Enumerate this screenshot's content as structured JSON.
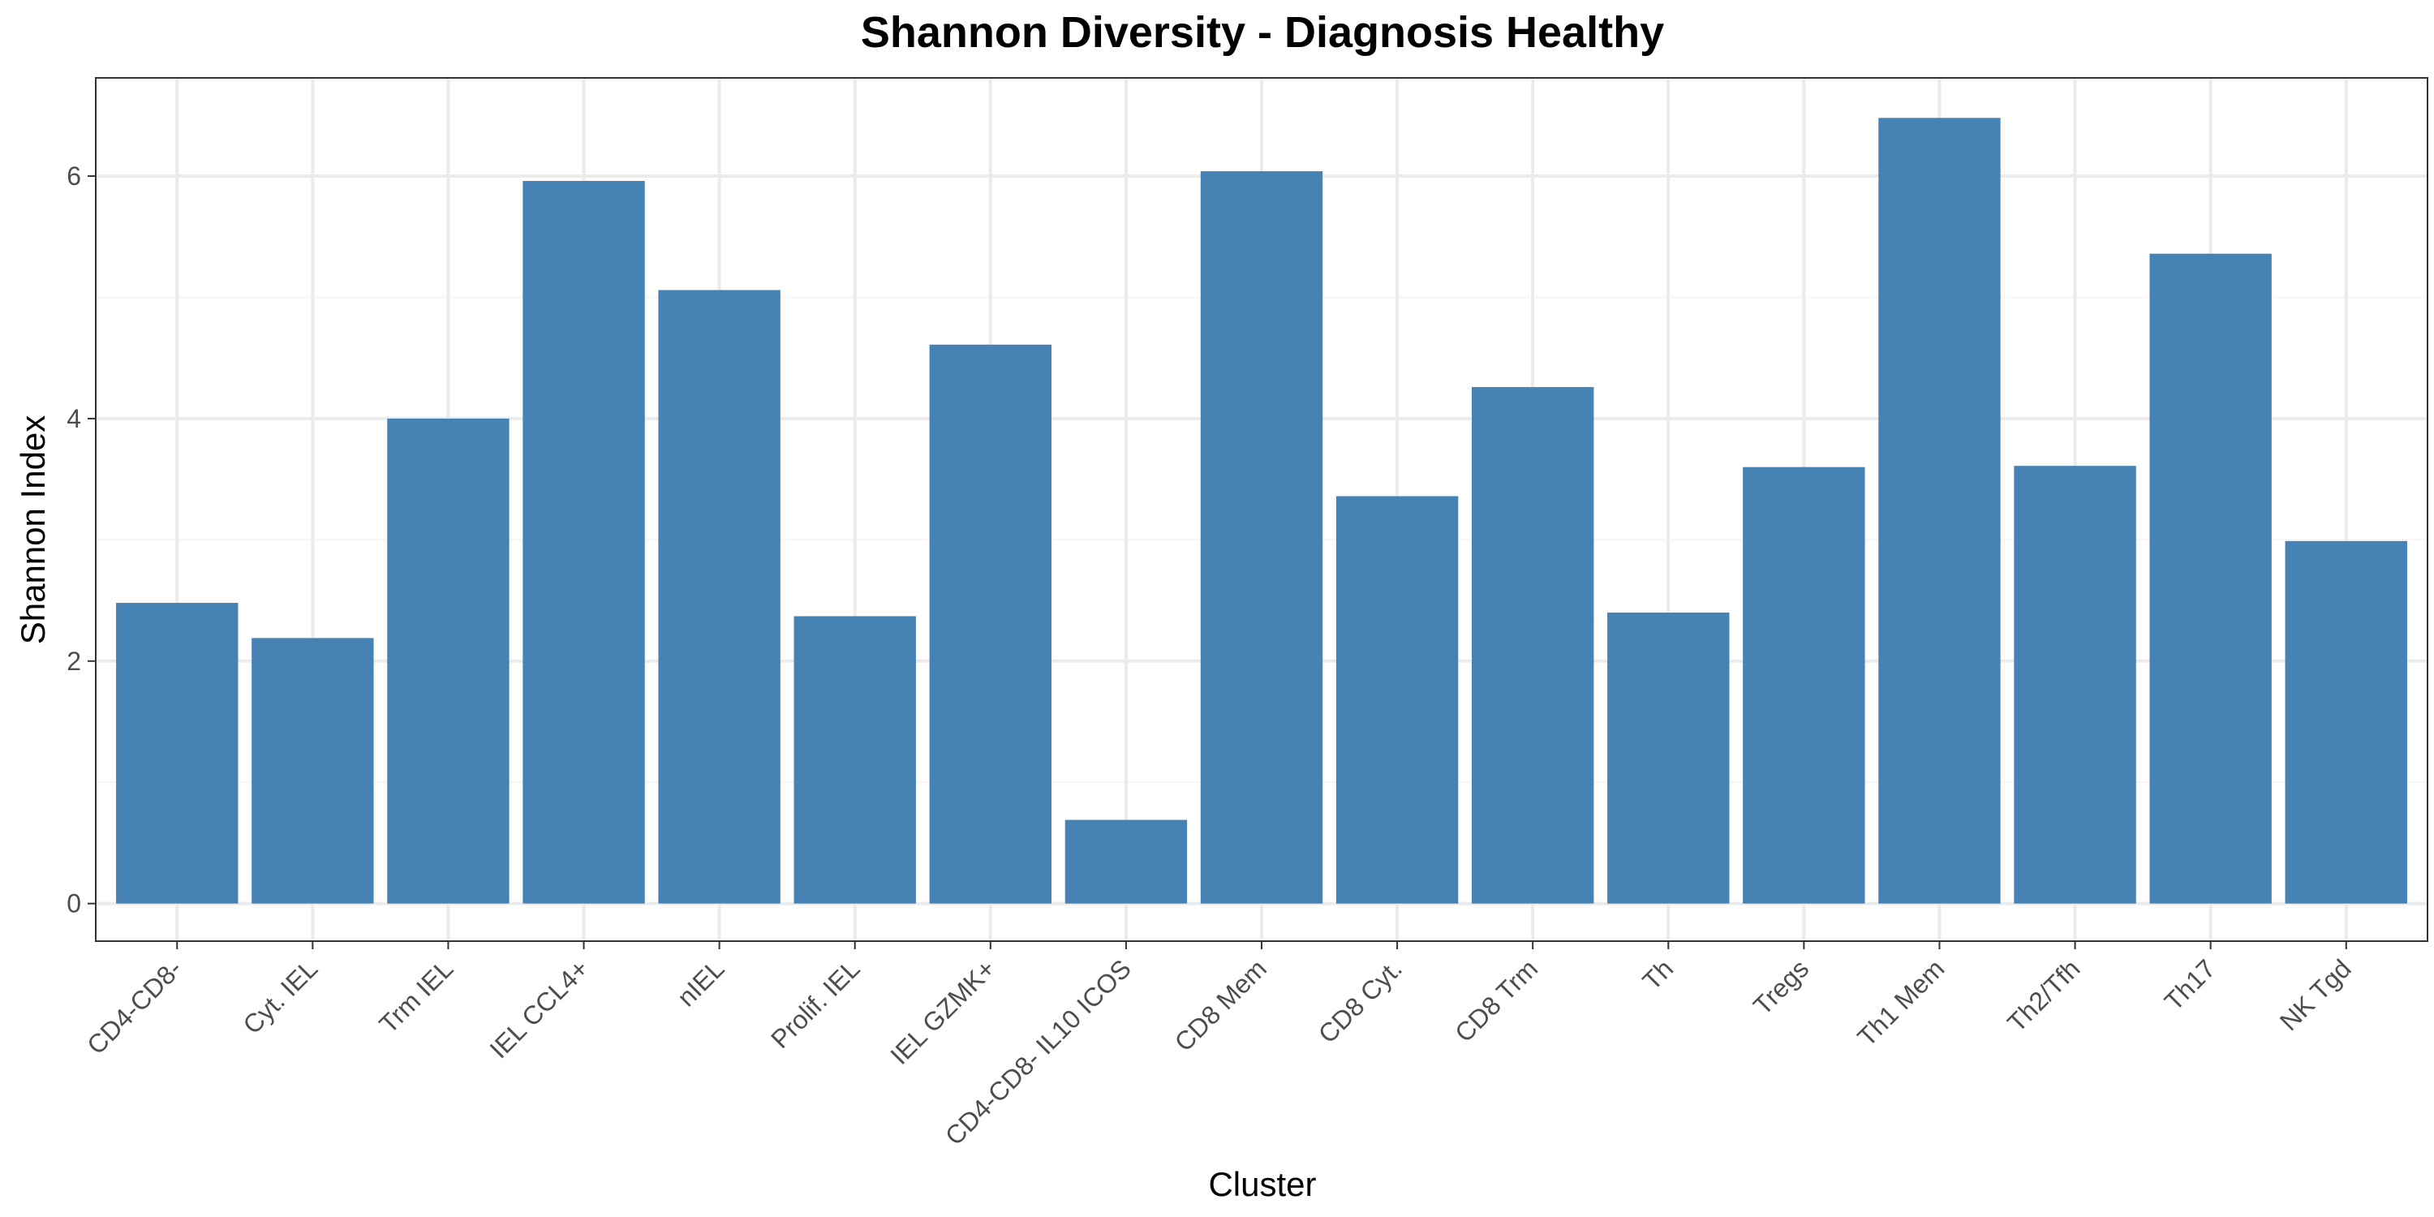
{
  "chart_data": {
    "type": "bar",
    "title": "Shannon Diversity - Diagnosis Healthy",
    "xlabel": "Cluster",
    "ylabel": "Shannon Index",
    "categories": [
      "CD4-CD8-",
      "Cyt. IEL",
      "Trm IEL",
      "IEL CCL4+",
      "nIEL",
      "Prolif. IEL",
      "IEL GZMK+",
      "CD4-CD8- IL10 ICOS",
      "CD8 Mem",
      "CD8 Cyt.",
      "CD8 Trm",
      "Th",
      "Tregs",
      "Th1 Mem",
      "Th2/Tfh",
      "Th17",
      "NK Tgd"
    ],
    "values": [
      2.48,
      2.19,
      4.0,
      5.96,
      5.06,
      2.37,
      4.61,
      0.69,
      6.04,
      3.36,
      4.26,
      2.4,
      3.6,
      6.48,
      3.61,
      5.36,
      2.99
    ],
    "ylim": [
      -0.31,
      6.81
    ],
    "yticks": [
      0,
      2,
      4,
      6
    ],
    "grid": true,
    "legend": "none",
    "colors": {
      "bar": "#4682b4",
      "grid_major": "#ebebeb",
      "grid_minor": "#f5f5f5",
      "panel_border": "#333333",
      "tick_text": "#4d4d4d",
      "title_text": "#000000"
    }
  }
}
